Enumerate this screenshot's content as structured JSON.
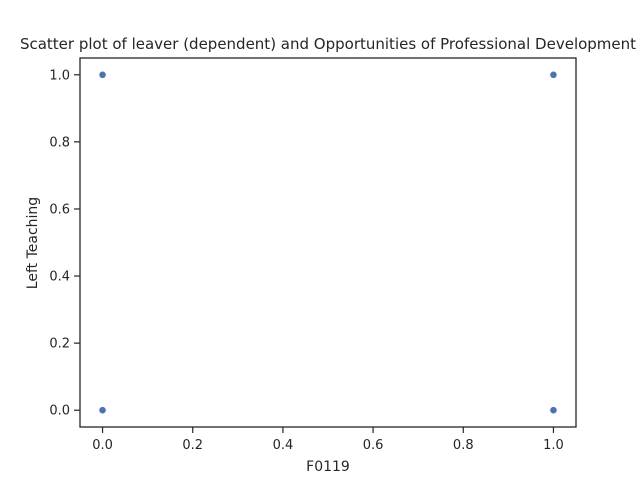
{
  "chart_data": {
    "type": "scatter",
    "title": "Scatter plot of leaver (dependent) and Opportunities of Professional Development",
    "xlabel": "F0119",
    "ylabel": "Left Teaching",
    "xlim": [
      -0.05,
      1.05
    ],
    "ylim": [
      -0.05,
      1.05
    ],
    "xticks": [
      "0.0",
      "0.2",
      "0.4",
      "0.6",
      "0.8",
      "1.0"
    ],
    "yticks": [
      "0.0",
      "0.2",
      "0.4",
      "0.6",
      "0.8",
      "1.0"
    ],
    "points": [
      {
        "x": 0.0,
        "y": 1.0
      },
      {
        "x": 1.0,
        "y": 1.0
      },
      {
        "x": 0.0,
        "y": 0.0
      },
      {
        "x": 1.0,
        "y": 0.0
      }
    ],
    "marker_color": "#4c72b0",
    "grid": false
  }
}
